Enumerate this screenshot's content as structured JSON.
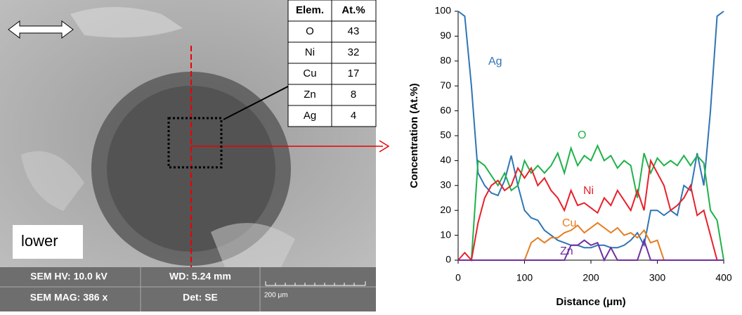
{
  "sem_panel": {
    "table": {
      "header": [
        "Elem.",
        "At.%"
      ],
      "rows": [
        [
          "O",
          "43"
        ],
        [
          "Ni",
          "32"
        ],
        [
          "Cu",
          "17"
        ],
        [
          "Zn",
          "8"
        ],
        [
          "Ag",
          "4"
        ]
      ]
    },
    "label": "lower",
    "info": [
      "SEM HV: 10.0 kV",
      "WD: 5.24 mm",
      "SEM MAG: 386 x",
      "Det: SE"
    ],
    "scale": "200 μm"
  },
  "chart_data": {
    "type": "line",
    "xlabel": "Distance (μm)",
    "ylabel": "Concentration (At.%)",
    "xlim": [
      0,
      400
    ],
    "xticks": [
      0,
      100,
      200,
      300,
      400
    ],
    "ylim": [
      0,
      100
    ],
    "yticks": [
      0,
      10,
      20,
      30,
      40,
      50,
      60,
      70,
      80,
      90,
      100
    ],
    "grid": false,
    "x": [
      0,
      10,
      20,
      30,
      40,
      50,
      60,
      70,
      80,
      90,
      100,
      110,
      120,
      130,
      140,
      150,
      160,
      170,
      180,
      190,
      200,
      210,
      220,
      230,
      240,
      250,
      260,
      270,
      280,
      290,
      300,
      310,
      320,
      330,
      340,
      350,
      360,
      370,
      380,
      390,
      400
    ],
    "series": [
      {
        "name": "Ag",
        "color": "#2e75b6",
        "values": [
          100,
          98,
          70,
          35,
          30,
          27,
          26,
          32,
          42,
          30,
          20,
          17,
          16,
          12,
          10,
          8,
          7,
          6,
          6,
          5,
          5,
          6,
          6,
          5,
          5,
          6,
          8,
          11,
          6,
          20,
          20,
          18,
          20,
          18,
          30,
          28,
          43,
          30,
          60,
          98,
          100
        ]
      },
      {
        "name": "O",
        "color": "#1fb24a",
        "values": [
          0,
          0,
          0,
          40,
          38,
          34,
          30,
          35,
          28,
          30,
          40,
          35,
          38,
          35,
          38,
          43,
          35,
          45,
          38,
          42,
          40,
          46,
          40,
          42,
          37,
          40,
          38,
          25,
          43,
          35,
          41,
          38,
          40,
          38,
          42,
          38,
          42,
          39,
          20,
          16,
          0
        ]
      },
      {
        "name": "Ni",
        "color": "#e8202a",
        "values": [
          0,
          3,
          0,
          15,
          25,
          30,
          32,
          28,
          30,
          37,
          33,
          37,
          30,
          33,
          28,
          25,
          20,
          28,
          22,
          23,
          21,
          19,
          25,
          22,
          28,
          24,
          20,
          28,
          20,
          40,
          35,
          30,
          20,
          22,
          25,
          30,
          18,
          20,
          10,
          0,
          0
        ]
      },
      {
        "name": "Cu",
        "color": "#e67e22",
        "values": [
          0,
          0,
          0,
          0,
          0,
          0,
          0,
          0,
          0,
          0,
          0,
          7,
          9,
          7,
          9,
          9,
          11,
          12,
          14,
          11,
          13,
          15,
          13,
          11,
          13,
          10,
          11,
          9,
          12,
          7,
          8,
          0,
          0,
          0,
          0,
          0,
          0,
          0,
          0,
          0,
          0
        ]
      },
      {
        "name": "Zn",
        "color": "#7030a0",
        "values": [
          0,
          0,
          0,
          0,
          0,
          0,
          0,
          0,
          0,
          0,
          0,
          0,
          0,
          0,
          0,
          0,
          0,
          6,
          6,
          8,
          6,
          7,
          0,
          5,
          0,
          0,
          0,
          0,
          8,
          0,
          0,
          0,
          0,
          0,
          0,
          0,
          0,
          0,
          0,
          0,
          0
        ]
      }
    ]
  }
}
